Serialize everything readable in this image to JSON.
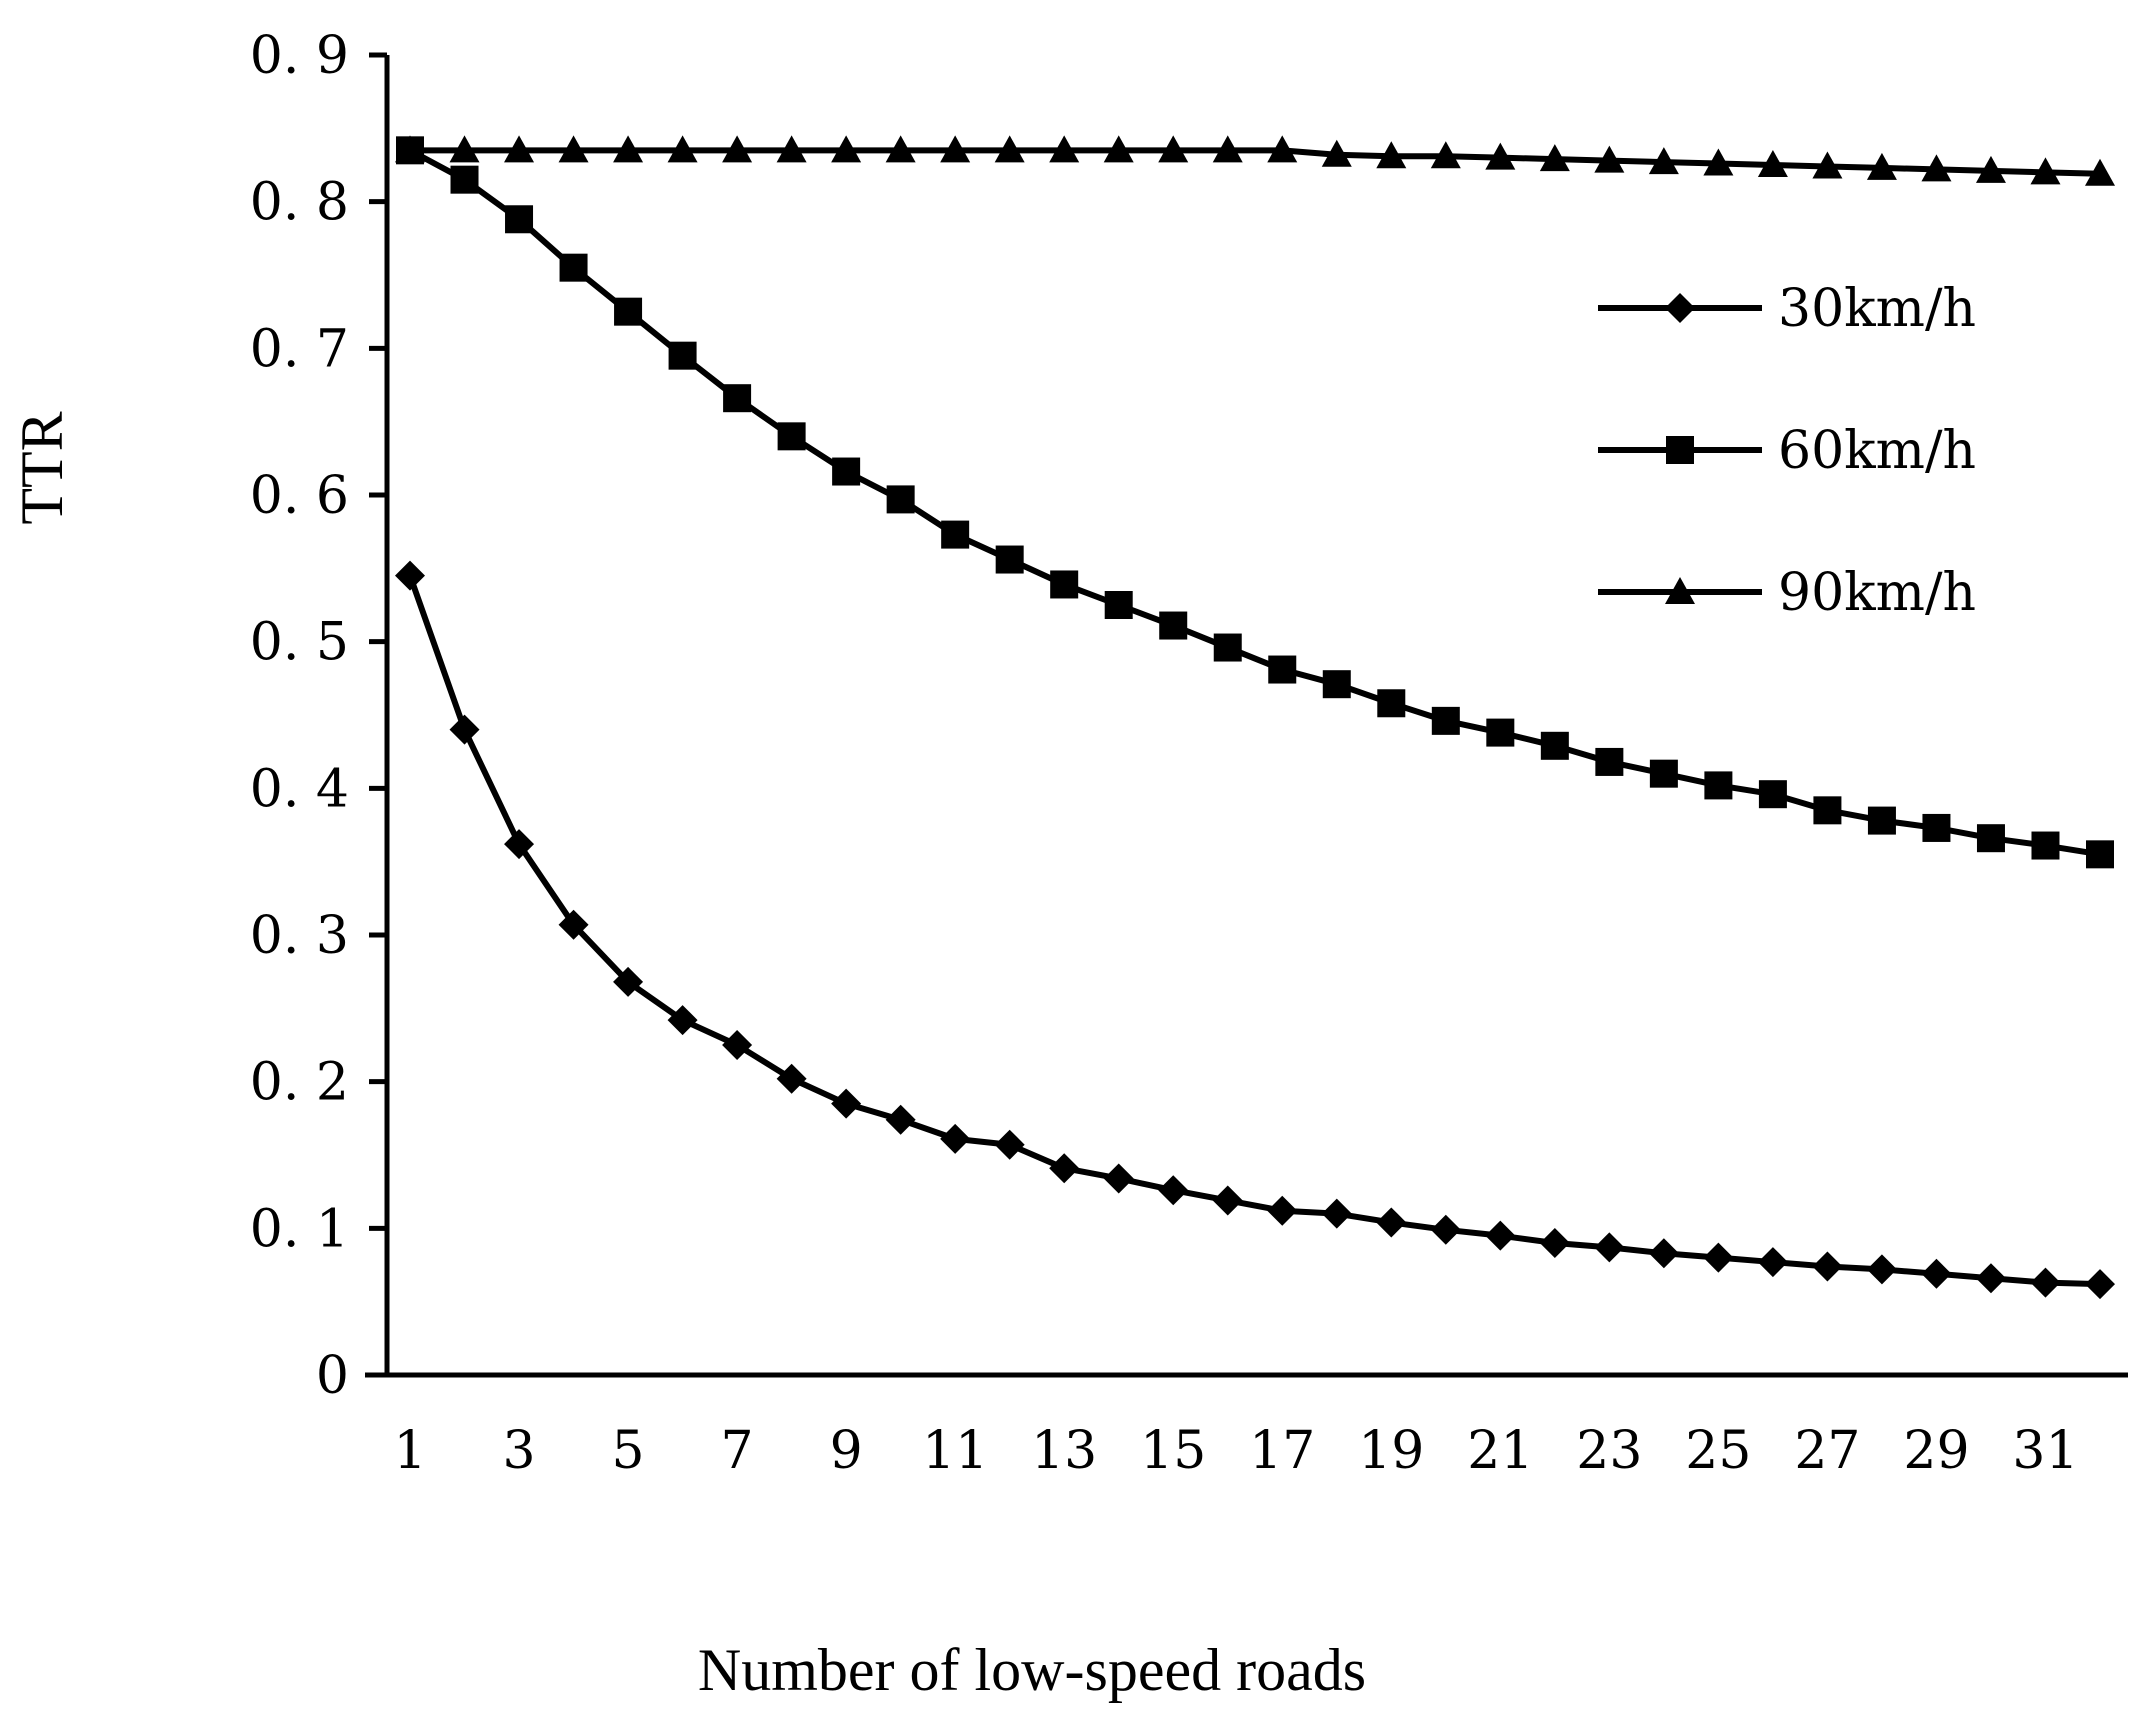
{
  "chart_data": {
    "type": "line",
    "title": "",
    "xlabel": "Number of low-speed roads",
    "ylabel": "TTR",
    "xlim": [
      1,
      32
    ],
    "ylim": [
      0,
      0.9
    ],
    "grid": false,
    "legend_position": "top-right",
    "x": [
      1,
      2,
      3,
      4,
      5,
      6,
      7,
      8,
      9,
      10,
      11,
      12,
      13,
      14,
      15,
      16,
      17,
      18,
      19,
      20,
      21,
      22,
      23,
      24,
      25,
      26,
      27,
      28,
      29,
      30,
      31,
      32
    ],
    "x_tick_labels": [
      "1",
      "3",
      "5",
      "7",
      "9",
      "11",
      "13",
      "15",
      "17",
      "19",
      "21",
      "23",
      "25",
      "27",
      "29",
      "31"
    ],
    "y_tick_labels": [
      "0",
      "0.1",
      "0.2",
      "0.3",
      "0.4",
      "0.5",
      "0.6",
      "0.7",
      "0.8",
      "0.9"
    ],
    "series": [
      {
        "name": "30km/h",
        "marker": "diamond",
        "values": [
          0.545,
          0.44,
          0.362,
          0.307,
          0.268,
          0.242,
          0.225,
          0.202,
          0.185,
          0.174,
          0.161,
          0.157,
          0.141,
          0.134,
          0.126,
          0.119,
          0.112,
          0.11,
          0.104,
          0.099,
          0.095,
          0.09,
          0.087,
          0.083,
          0.08,
          0.077,
          0.074,
          0.072,
          0.069,
          0.066,
          0.063,
          0.062
        ]
      },
      {
        "name": "60km/h",
        "marker": "square",
        "values": [
          0.835,
          0.815,
          0.788,
          0.755,
          0.725,
          0.695,
          0.666,
          0.64,
          0.616,
          0.597,
          0.573,
          0.556,
          0.539,
          0.525,
          0.511,
          0.496,
          0.481,
          0.471,
          0.458,
          0.446,
          0.438,
          0.429,
          0.418,
          0.41,
          0.402,
          0.396,
          0.385,
          0.378,
          0.373,
          0.366,
          0.361,
          0.355
        ]
      },
      {
        "name": "90km/h",
        "marker": "triangle",
        "values": [
          0.835,
          0.835,
          0.835,
          0.835,
          0.835,
          0.835,
          0.835,
          0.835,
          0.835,
          0.835,
          0.835,
          0.835,
          0.835,
          0.835,
          0.835,
          0.835,
          0.835,
          0.832,
          0.831,
          0.831,
          0.83,
          0.829,
          0.828,
          0.827,
          0.826,
          0.825,
          0.824,
          0.823,
          0.822,
          0.821,
          0.82,
          0.819
        ]
      }
    ]
  }
}
